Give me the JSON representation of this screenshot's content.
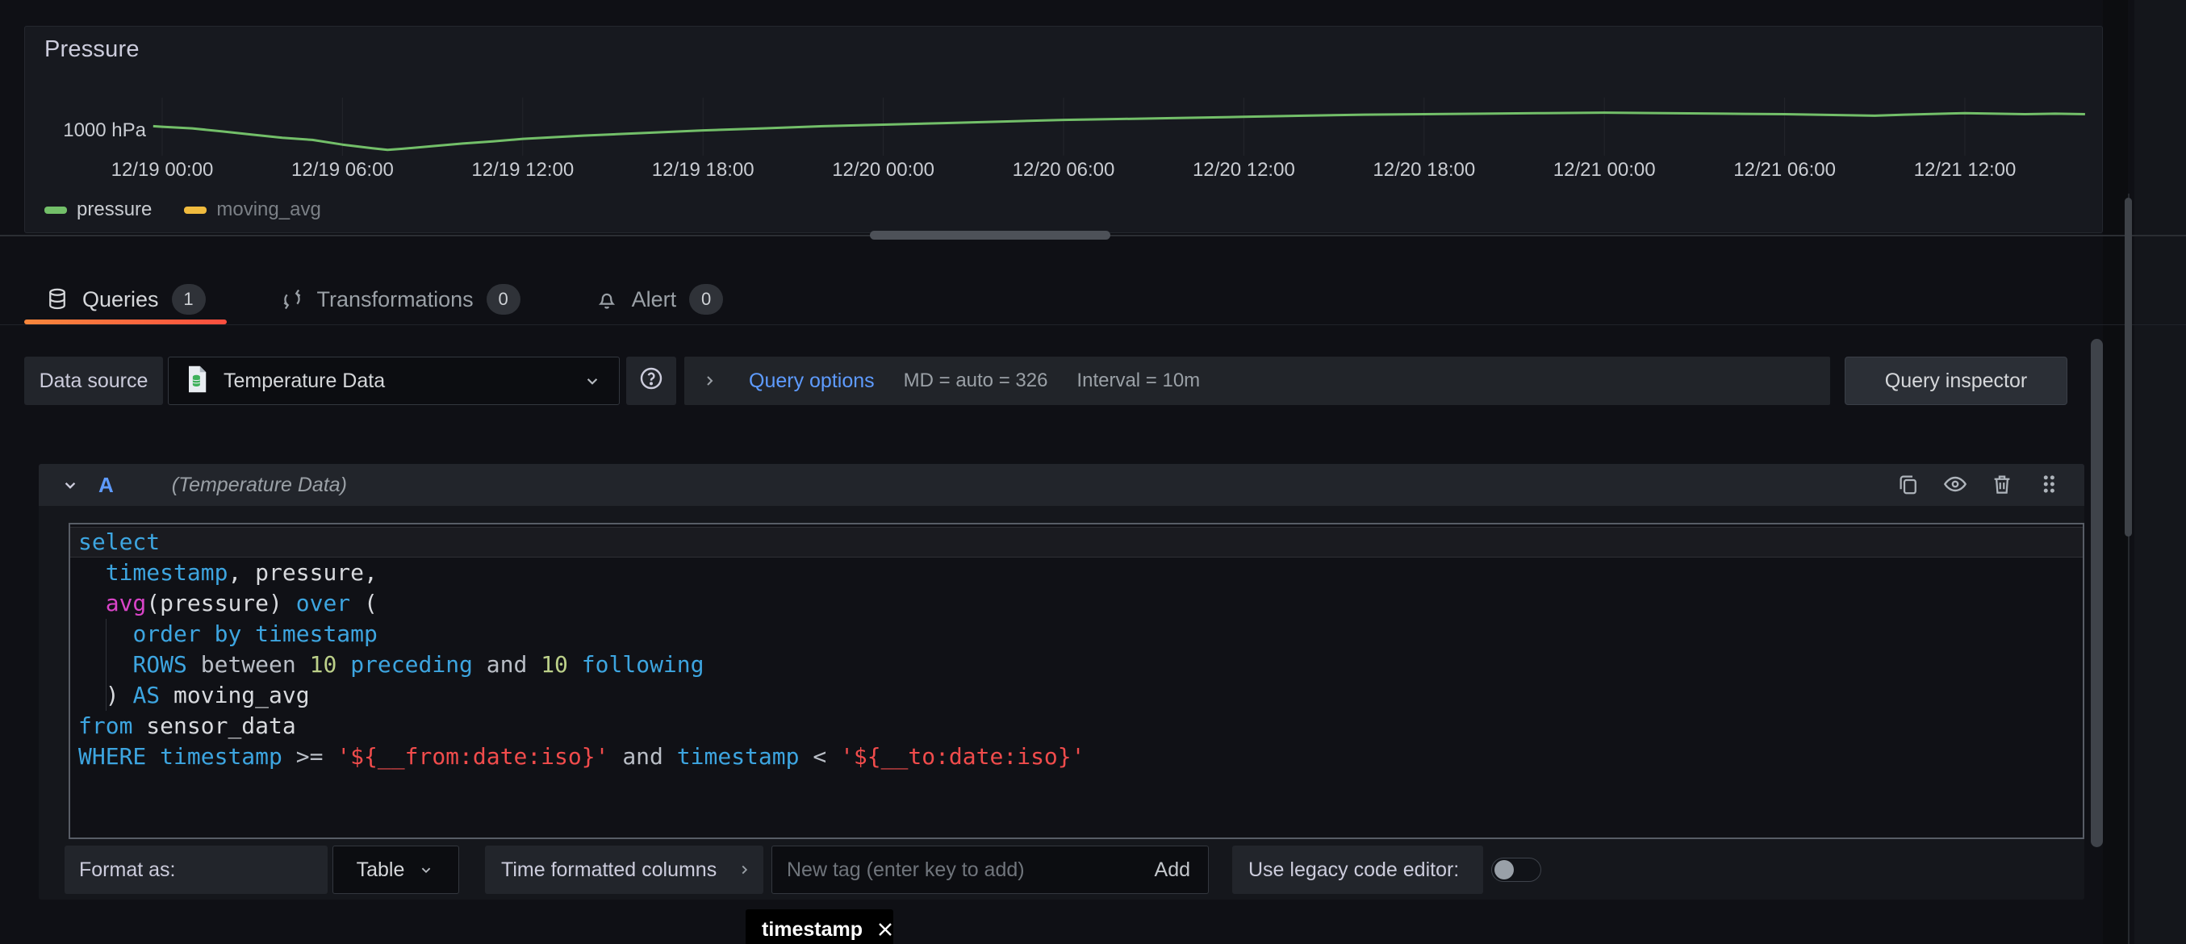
{
  "panel": {
    "title": "Pressure"
  },
  "chart_data": {
    "type": "line",
    "title": "Pressure",
    "x_tick_labels": [
      "12/19 00:00",
      "12/19 06:00",
      "12/19 12:00",
      "12/19 18:00",
      "12/20 00:00",
      "12/20 06:00",
      "12/20 12:00",
      "12/20 18:00",
      "12/21 00:00",
      "12/21 06:00",
      "12/21 12:00"
    ],
    "y_tick_labels": [
      "1000 hPa"
    ],
    "y_anchor_value": 1000,
    "grid": "vertical-only",
    "legend_position": "bottom-left",
    "x_hours_from_first_tick": [
      -0.3,
      0,
      1,
      2,
      3,
      4,
      5,
      6,
      7,
      7.5,
      8,
      9,
      10,
      11,
      12,
      13,
      14,
      16,
      18,
      20,
      22,
      24,
      26,
      28,
      30,
      32,
      34,
      36,
      38,
      40,
      42,
      44,
      46,
      48,
      50,
      52,
      54,
      56,
      57,
      58,
      60,
      61,
      62,
      63,
      64
    ],
    "series": [
      {
        "name": "pressure",
        "color": "#73bf69",
        "visible": true,
        "values_hpa": [
          1000.35,
          1000.3,
          1000.15,
          999.85,
          999.55,
          999.25,
          999.05,
          998.6,
          998.25,
          998.1,
          998.2,
          998.45,
          998.7,
          998.9,
          999.15,
          999.3,
          999.45,
          999.7,
          999.95,
          1000.15,
          1000.35,
          1000.5,
          1000.65,
          1000.8,
          1000.95,
          1001.05,
          1001.15,
          1001.25,
          1001.35,
          1001.45,
          1001.5,
          1001.55,
          1001.6,
          1001.65,
          1001.6,
          1001.55,
          1001.5,
          1001.4,
          1001.35,
          1001.45,
          1001.6,
          1001.55,
          1001.5,
          1001.55,
          1001.5
        ]
      },
      {
        "name": "moving_avg",
        "color": "#f0bb3e",
        "visible": false,
        "values_hpa": []
      }
    ]
  },
  "tabs": [
    {
      "label": "Queries",
      "count": "1",
      "icon": "database-icon",
      "active": true
    },
    {
      "label": "Transformations",
      "count": "0",
      "icon": "transform-icon",
      "active": false
    },
    {
      "label": "Alert",
      "count": "0",
      "icon": "bell-icon",
      "active": false
    }
  ],
  "toolbar": {
    "datasource_label": "Data source",
    "datasource_value": "Temperature Data",
    "query_options_label": "Query options",
    "query_options_md": "MD = auto = 326",
    "query_options_interval": "Interval = 10m",
    "inspector_button": "Query inspector"
  },
  "query": {
    "ref_id": "A",
    "datasource_hint": "(Temperature Data)",
    "sql_lines": [
      [
        [
          "select",
          "kw"
        ]
      ],
      [
        [
          "  ",
          "pl"
        ],
        [
          "timestamp",
          "kw"
        ],
        [
          ", pressure,",
          "pl"
        ]
      ],
      [
        [
          "  ",
          "pl"
        ],
        [
          "avg",
          "fn"
        ],
        [
          "(pressure) ",
          "pl"
        ],
        [
          "over",
          "kw"
        ],
        [
          " (",
          "pl"
        ]
      ],
      [
        [
          "    ",
          "pl"
        ],
        [
          "order by timestamp",
          "kw"
        ]
      ],
      [
        [
          "    ",
          "pl"
        ],
        [
          "ROWS",
          "kw"
        ],
        [
          " ",
          "pl"
        ],
        [
          "between",
          "op"
        ],
        [
          " ",
          "pl"
        ],
        [
          "10",
          "num"
        ],
        [
          " ",
          "pl"
        ],
        [
          "preceding",
          "kw"
        ],
        [
          " ",
          "pl"
        ],
        [
          "and",
          "op"
        ],
        [
          " ",
          "pl"
        ],
        [
          "10",
          "num"
        ],
        [
          " ",
          "pl"
        ],
        [
          "following",
          "kw"
        ]
      ],
      [
        [
          "  ) ",
          "pl"
        ],
        [
          "AS",
          "kw"
        ],
        [
          " moving_avg",
          "pl"
        ]
      ],
      [
        [
          "from",
          "kw"
        ],
        [
          " sensor_data",
          "pl"
        ]
      ],
      [
        [
          "WHERE",
          "kw"
        ],
        [
          " ",
          "pl"
        ],
        [
          "timestamp",
          "kw"
        ],
        [
          " ",
          "pl"
        ],
        [
          ">=",
          "op"
        ],
        [
          " ",
          "pl"
        ],
        [
          "'${__from:date:iso}'",
          "str"
        ],
        [
          " ",
          "pl"
        ],
        [
          "and",
          "op"
        ],
        [
          " ",
          "pl"
        ],
        [
          "timestamp",
          "kw"
        ],
        [
          " ",
          "pl"
        ],
        [
          "<",
          "op"
        ],
        [
          " ",
          "pl"
        ],
        [
          "'${__to:date:iso}'",
          "str"
        ]
      ]
    ]
  },
  "footer": {
    "format_label": "Format as:",
    "format_value": "Table",
    "time_columns_label": "Time formatted columns",
    "tag_input_placeholder": "New tag (enter key to add)",
    "add_button": "Add",
    "legacy_label": "Use legacy code editor:",
    "legacy_enabled": false,
    "time_columns_tags": [
      {
        "label": "timestamp"
      }
    ]
  },
  "colors": {
    "accent_blue": "#5e9bfe",
    "series_green": "#73bf69",
    "series_yellow": "#f0bb3e",
    "tab_underline_gradient": [
      "#f8873c",
      "#fb4e3f"
    ],
    "code_keyword": "#3da5e0",
    "code_function": "#d944c8",
    "code_number": "#bcd089",
    "code_string": "#f14c4c"
  }
}
